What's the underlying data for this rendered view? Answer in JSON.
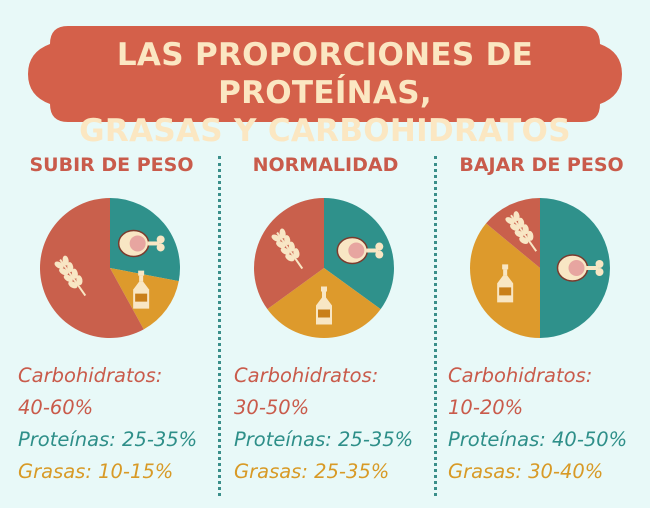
{
  "banner": {
    "line1": "LAS PROPORCIONES DE PROTEÍNAS,",
    "line2": "GRASAS Y CARBOHIDRATOS"
  },
  "colors": {
    "carbs": "#c9604c",
    "proteins": "#2f918b",
    "fats": "#dd9a2c",
    "banner": "#d4604a",
    "title_text": "#c95b4b"
  },
  "chart_data": [
    {
      "type": "pie",
      "title": "SUBIR DE PESO",
      "slices": [
        {
          "name": "Proteínas",
          "value": 0.28,
          "icon": "meat-icon"
        },
        {
          "name": "Grasas",
          "value": 0.14,
          "icon": "oil-bottle-icon"
        },
        {
          "name": "Carbohidratos",
          "value": 0.58,
          "icon": "wheat-icon"
        }
      ],
      "labels": {
        "carbs_label": "Carbohidratos:",
        "carbs_value": "40-60%",
        "proteins": "Proteínas: 25-35%",
        "fats": "Grasas: 10-15%"
      }
    },
    {
      "type": "pie",
      "title": "NORMALIDAD",
      "slices": [
        {
          "name": "Proteínas",
          "value": 0.35,
          "icon": "meat-icon"
        },
        {
          "name": "Grasas",
          "value": 0.3,
          "icon": "oil-bottle-icon"
        },
        {
          "name": "Carbohidratos",
          "value": 0.35,
          "icon": "wheat-icon"
        }
      ],
      "labels": {
        "carbs_label": "Carbohidratos:",
        "carbs_value": "30-50%",
        "proteins": "Proteínas: 25-35%",
        "fats": "Grasas: 25-35%"
      }
    },
    {
      "type": "pie",
      "title": "BAJAR DE PESO",
      "slices": [
        {
          "name": "Proteínas",
          "value": 0.5,
          "icon": "meat-icon"
        },
        {
          "name": "Grasas",
          "value": 0.36,
          "icon": "oil-bottle-icon"
        },
        {
          "name": "Carbohidratos",
          "value": 0.14,
          "icon": "wheat-icon"
        }
      ],
      "labels": {
        "carbs_label": "Carbohidratos:",
        "carbs_value": "10-20%",
        "proteins": "Proteínas: 40-50%",
        "fats": "Grasas: 30-40%"
      }
    }
  ]
}
